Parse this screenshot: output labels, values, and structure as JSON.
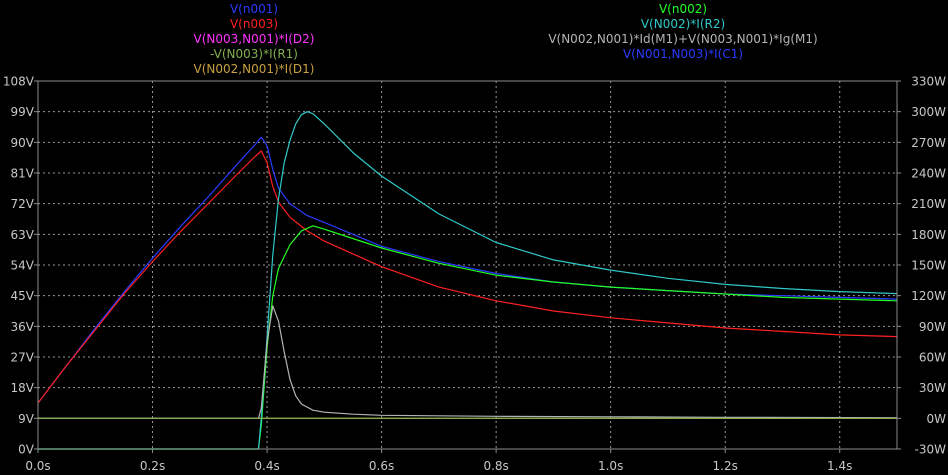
{
  "colors": {
    "background": "#000000",
    "grid": "#9a9a9a",
    "axis_text": "#c8c8c8",
    "frame": "#8c8c8c"
  },
  "legend_left": [
    {
      "label": "V(n001)",
      "color": "#2b3bff"
    },
    {
      "label": "V(n003)",
      "color": "#ff2020"
    },
    {
      "label": "V(N003,N001)*I(D2)",
      "color": "#ff33ff"
    },
    {
      "label": "-V(N003)*I(R1)",
      "color": "#80b050"
    },
    {
      "label": "V(N002,N001)*I(D1)",
      "color": "#c8a040"
    }
  ],
  "legend_right": [
    {
      "label": "V(n002)",
      "color": "#22ff22"
    },
    {
      "label": "V(N002)*I(R2)",
      "color": "#30c8c8"
    },
    {
      "label": "V(N002,N001)*Id(M1)+V(N003,N001)*Ig(M1)",
      "color": "#b4b4b4"
    },
    {
      "label": "V(N001,N003)*I(C1)",
      "color": "#2b3bff"
    }
  ],
  "chart_data": {
    "type": "line",
    "x_unit": "s",
    "xlim": [
      0,
      1.5
    ],
    "x_ticks": [
      "0.0s",
      "0.2s",
      "0.4s",
      "0.6s",
      "0.8s",
      "1.0s",
      "1.2s",
      "1.4s"
    ],
    "x_tick_values": [
      0,
      0.2,
      0.4,
      0.6,
      0.8,
      1.0,
      1.2,
      1.4
    ],
    "y_left": {
      "unit": "V",
      "ylim": [
        0,
        108
      ],
      "ticks": [
        "0V",
        "9V",
        "18V",
        "27V",
        "36V",
        "45V",
        "54V",
        "63V",
        "72V",
        "81V",
        "90V",
        "99V",
        "108V"
      ],
      "tick_values": [
        0,
        9,
        18,
        27,
        36,
        45,
        54,
        63,
        72,
        81,
        90,
        99,
        108
      ]
    },
    "y_right": {
      "unit": "W",
      "ylim": [
        -30,
        330
      ],
      "ticks": [
        "-30W",
        "0W",
        "30W",
        "60W",
        "90W",
        "120W",
        "150W",
        "180W",
        "210W",
        "240W",
        "270W",
        "300W",
        "330W"
      ],
      "tick_values": [
        -30,
        0,
        30,
        60,
        90,
        120,
        150,
        180,
        210,
        240,
        270,
        300,
        330
      ]
    },
    "grid": true,
    "series": [
      {
        "name": "V(N002,N001)*I(D1)",
        "axis": "right",
        "color": "#c8a040",
        "x": [
          0,
          1.5
        ],
        "y": [
          0,
          0
        ]
      },
      {
        "name": "V(n001)",
        "axis": "left",
        "color": "#2b3bff",
        "x": [
          0,
          0.05,
          0.1,
          0.15,
          0.2,
          0.25,
          0.3,
          0.35,
          0.38,
          0.39,
          0.4,
          0.41,
          0.42,
          0.44,
          0.47,
          0.5,
          0.6,
          0.7,
          0.8,
          0.9,
          1.0,
          1.1,
          1.2,
          1.3,
          1.4,
          1.5
        ],
        "y": [
          13.5,
          24.5,
          35.5,
          46,
          56,
          65.5,
          74.5,
          84,
          89.5,
          91.5,
          89,
          82,
          76.5,
          72,
          68.5,
          66.5,
          59.5,
          55,
          51.5,
          49,
          47.5,
          46.5,
          45.5,
          45,
          44.5,
          44
        ]
      },
      {
        "name": "V(n003)",
        "axis": "left",
        "color": "#ff2020",
        "x": [
          0,
          0.05,
          0.1,
          0.15,
          0.2,
          0.25,
          0.3,
          0.35,
          0.38,
          0.39,
          0.4,
          0.41,
          0.42,
          0.44,
          0.47,
          0.5,
          0.6,
          0.7,
          0.8,
          0.9,
          1.0,
          1.1,
          1.2,
          1.3,
          1.4,
          1.5
        ],
        "y": [
          13.5,
          24.5,
          35,
          45.5,
          55,
          64,
          72.5,
          81,
          86,
          87.5,
          84,
          77,
          72.5,
          68,
          64,
          61,
          53.5,
          47.5,
          43.5,
          40.5,
          38.5,
          37,
          35.5,
          34.5,
          33.5,
          33
        ]
      },
      {
        "name": "V(n002)",
        "axis": "left",
        "color": "#22ff22",
        "x": [
          0,
          0.385,
          0.39,
          0.4,
          0.41,
          0.42,
          0.44,
          0.46,
          0.48,
          0.5,
          0.6,
          0.7,
          0.8,
          0.9,
          1.0,
          1.1,
          1.2,
          1.3,
          1.4,
          1.5
        ],
        "y": [
          0,
          0,
          7,
          30,
          45,
          53,
          60,
          64,
          65.5,
          64.5,
          59,
          54.5,
          51,
          49,
          47.5,
          46.5,
          45.5,
          44.5,
          44,
          43.5
        ]
      },
      {
        "name": "V(N002)*I(R2)",
        "axis": "right",
        "color": "#30c8c8",
        "x": [
          0,
          0.385,
          0.39,
          0.4,
          0.41,
          0.42,
          0.43,
          0.44,
          0.45,
          0.46,
          0.47,
          0.48,
          0.5,
          0.55,
          0.6,
          0.7,
          0.8,
          0.9,
          1.0,
          1.1,
          1.2,
          1.3,
          1.4,
          1.5
        ],
        "y": [
          -30,
          -30,
          0,
          80,
          160,
          215,
          250,
          272,
          288,
          297,
          300,
          298,
          288,
          260,
          237,
          200,
          172,
          155,
          145,
          137,
          131,
          127,
          124,
          122
        ]
      },
      {
        "name": "V(N002,N001)*Id(M1)+V(N003,N001)*Ig(M1)",
        "axis": "right",
        "color": "#b4b4b4",
        "x": [
          0,
          0.385,
          0.39,
          0.4,
          0.41,
          0.42,
          0.43,
          0.44,
          0.45,
          0.46,
          0.48,
          0.5,
          0.55,
          0.6,
          0.8,
          1.0,
          1.2,
          1.5
        ],
        "y": [
          0,
          0,
          10,
          75,
          110,
          95,
          65,
          38,
          22,
          14,
          8,
          6,
          4,
          3,
          2,
          1.5,
          1,
          0.5
        ]
      },
      {
        "name": "-V(N003)*I(R1)",
        "axis": "right",
        "color": "#80b050",
        "x": [
          0,
          1.5
        ],
        "y": [
          0,
          0
        ]
      }
    ]
  }
}
